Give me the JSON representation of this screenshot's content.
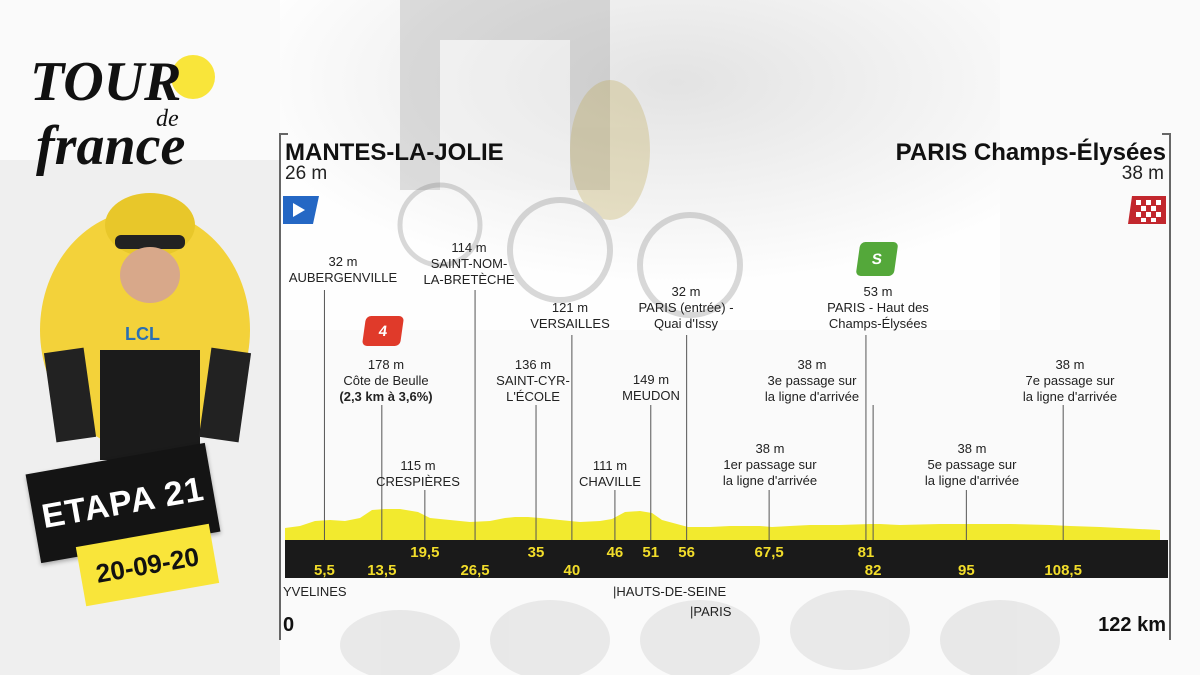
{
  "logo": {
    "line1": "TOUR",
    "line2": "de",
    "line3": "france"
  },
  "stage": {
    "label": "ETAPA 21",
    "date": "20-09-20"
  },
  "start": {
    "city": "MANTES-LA-JOLIE",
    "alt": "26 m"
  },
  "finish": {
    "city": "PARIS Champs-Élysées",
    "alt": "38 m",
    "km": "122 km"
  },
  "zero_km": "0",
  "points": [
    {
      "id": "aubergenville",
      "alt": "32 m",
      "name": "AUBERGENVILLE",
      "km": "5,5"
    },
    {
      "id": "beulle",
      "alt": "178 m",
      "name": "Côte de Beulle",
      "note": "(2,3 km à 3,6%)",
      "km": "13,5",
      "category": "4"
    },
    {
      "id": "crespieres",
      "alt": "115 m",
      "name": "CRESPIÈRES",
      "km": "19,5"
    },
    {
      "id": "saint-nom",
      "alt": "114 m",
      "name": "SAINT-NOM-\nLA-BRETÈCHE",
      "km": "26,5"
    },
    {
      "id": "saint-cyr",
      "alt": "136 m",
      "name": "SAINT-CYR-\nL'ÉCOLE",
      "km": "35"
    },
    {
      "id": "versailles",
      "alt": "121 m",
      "name": "VERSAILLES",
      "km": "40"
    },
    {
      "id": "chaville",
      "alt": "111 m",
      "name": "CHAVILLE",
      "km": "46"
    },
    {
      "id": "meudon",
      "alt": "149 m",
      "name": "MEUDON",
      "km": "51"
    },
    {
      "id": "paris-entree",
      "alt": "32 m",
      "name": "PARIS (entrée) -\nQuai d'Issy",
      "km": "56"
    },
    {
      "id": "pass1",
      "alt": "38 m",
      "name": "1er passage sur\nla ligne d'arrivée",
      "km": "67,5"
    },
    {
      "id": "pass3",
      "alt": "38 m",
      "name": "3e passage sur\nla ligne d'arrivée",
      "km": "82"
    },
    {
      "id": "sprint",
      "alt": "53 m",
      "name": "PARIS - Haut des\nChamps-Élysées",
      "km": "81",
      "category": "S"
    },
    {
      "id": "pass5",
      "alt": "38 m",
      "name": "5e passage sur\nla ligne d'arrivée",
      "km": "95"
    },
    {
      "id": "pass7",
      "alt": "38 m",
      "name": "7e passage sur\nla ligne d'arrivée",
      "km": "108,5"
    }
  ],
  "regions": {
    "yvelines": "YVELINES",
    "hauts": "|HAUTS-DE-SEINE",
    "paris": "|PARIS"
  },
  "colors": {
    "yellow": "#f9e53a",
    "profile": "#f2ea2e",
    "bar": "#1a1a1a",
    "climb": "#e03a2a",
    "sprint": "#54a83a",
    "start_flag": "#2467c4",
    "finish_flag": "#c2272d"
  }
}
